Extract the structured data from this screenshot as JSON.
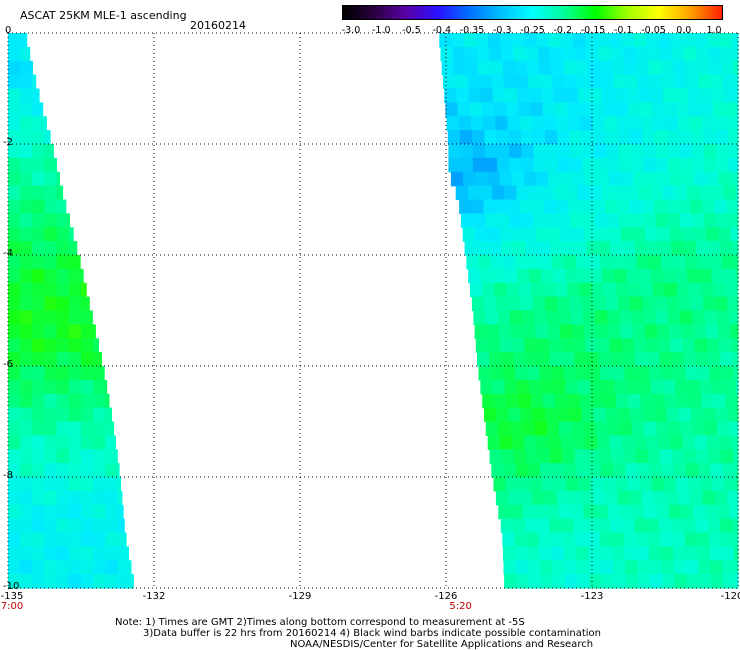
{
  "header": {
    "title": "ASCAT 25KM MLE-1 ascending",
    "date": "20160214"
  },
  "colorbar": {
    "ticks": [
      "-3.0",
      "-1.0",
      "-0.5",
      "-0.4",
      "-0.35",
      "-0.3",
      "-0.25",
      "-0.2",
      "-0.15",
      "-0.1",
      "-0.05",
      "0.0",
      "1.0"
    ]
  },
  "axes": {
    "y_ticks": [
      "0",
      "-2",
      "-4",
      "-6",
      "-8",
      "-10"
    ],
    "x_ticks": [
      "-135",
      "-132",
      "-129",
      "-126",
      "-123",
      "-120"
    ],
    "time_labels": [
      {
        "text": "7:00",
        "lon": -135
      },
      {
        "text": "5:20",
        "lon": -125.7
      }
    ]
  },
  "chart_data": {
    "type": "heatmap",
    "xlim": [
      -135,
      -120
    ],
    "ylim": [
      -10,
      0
    ],
    "x_ticks": [
      -135,
      -132,
      -129,
      -126,
      -123,
      -120
    ],
    "y_ticks": [
      0,
      -2,
      -4,
      -6,
      -8,
      -10
    ],
    "grid": true,
    "colorbar_scale": [
      -3.0,
      -1.0,
      -0.5,
      -0.4,
      -0.35,
      -0.3,
      -0.25,
      -0.2,
      -0.15,
      -0.1,
      -0.05,
      0.0,
      1.0
    ],
    "swaths": [
      {
        "name": "west",
        "edge_lat": [
          0,
          -1,
          -2,
          -3,
          -4,
          -5,
          -6,
          -7,
          -8,
          -9,
          -10
        ],
        "edge_lon": [
          -134.65,
          -134.4,
          -134.1,
          -133.85,
          -133.55,
          -133.3,
          -133.05,
          -132.85,
          -132.7,
          -132.6,
          -132.4
        ],
        "values": [
          {
            "lat": -0.7,
            "v": -0.33
          },
          {
            "lat": -1.5,
            "v": -0.27
          },
          {
            "lat": -2.5,
            "v": -0.22
          },
          {
            "lat": -3.5,
            "v": -0.19
          },
          {
            "lat": -4.6,
            "v": -0.15
          },
          {
            "lat": -5.5,
            "v": -0.13
          },
          {
            "lat": -6.5,
            "v": -0.2
          },
          {
            "lat": -7.5,
            "v": -0.25
          },
          {
            "lat": -8.6,
            "v": -0.3
          },
          {
            "lat": -9.6,
            "v": -0.29
          }
        ]
      },
      {
        "name": "east",
        "edge_lat": [
          0,
          -1,
          -2,
          -2.5,
          -3,
          -4,
          -5,
          -6,
          -7,
          -8,
          -9,
          -10
        ],
        "edge_lon": [
          -126.15,
          -126.05,
          -125.95,
          -125.95,
          -125.75,
          -125.6,
          -125.45,
          -125.35,
          -125.2,
          -125.05,
          -124.85,
          -124.8
        ],
        "values": [
          {
            "lat": -1,
            "lon": -124.5,
            "v": -0.3
          },
          {
            "lat": -2.5,
            "lon": -125.3,
            "v": -0.36
          },
          {
            "lat": -3,
            "lon": -123.5,
            "v": -0.27
          },
          {
            "lat": -4.5,
            "lon": -121.5,
            "v": -0.2
          },
          {
            "lat": -5.5,
            "lon": -123.5,
            "v": -0.19
          },
          {
            "lat": -7,
            "lon": -124.3,
            "v": -0.15
          },
          {
            "lat": -8.5,
            "lon": -122.5,
            "v": -0.24
          },
          {
            "lat": -9.5,
            "lon": -123.5,
            "v": -0.26
          }
        ]
      }
    ]
  },
  "notes": {
    "line1": "Note: 1) Times are GMT 2)Times along bottom correspond to measurement at -5S",
    "line2": "3)Data buffer is 22 hrs from 20160214 4) Black wind barbs indicate possible contamination",
    "line3": "NOAA/NESDIS/Center for Satellite Applications and Research"
  }
}
